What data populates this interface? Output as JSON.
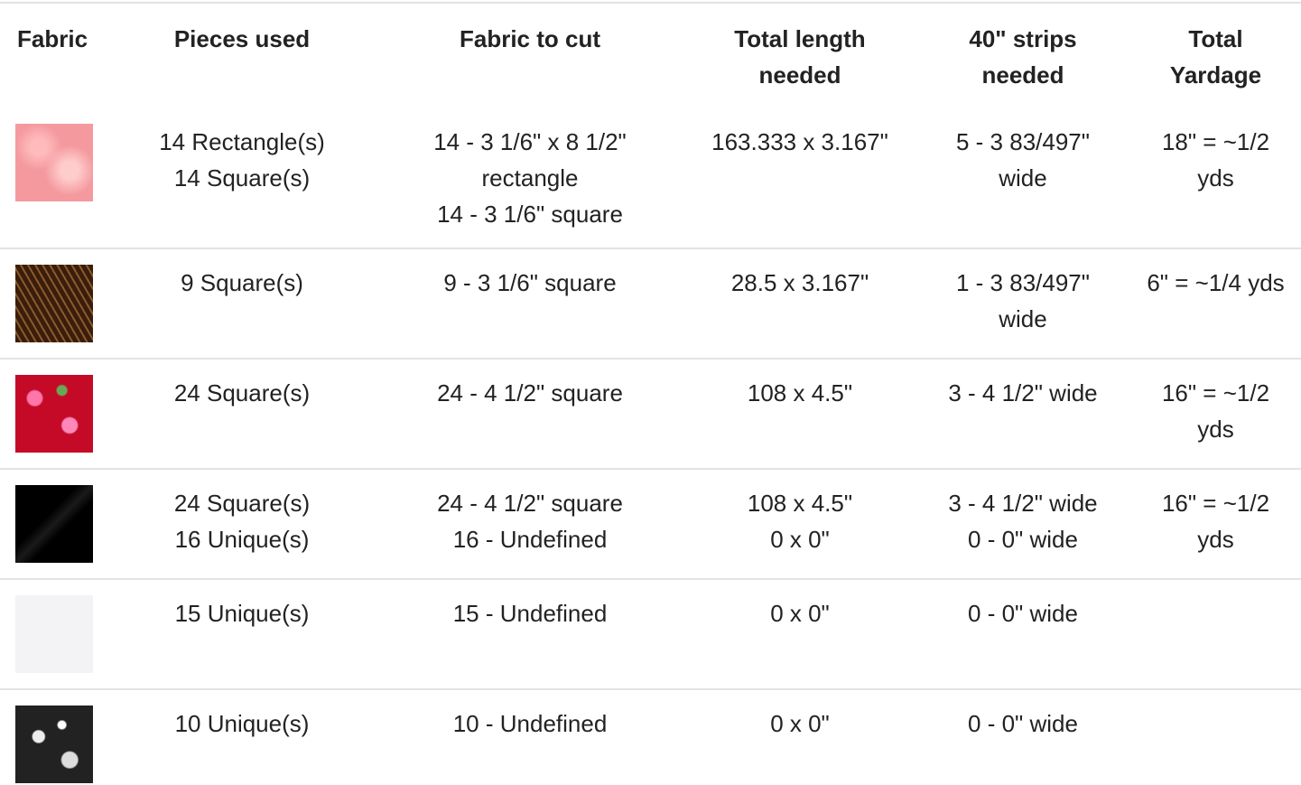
{
  "table": {
    "header": [
      "Fabric",
      "Pieces used",
      "Fabric to cut",
      "Total length needed",
      "40\" strips needed",
      "Total Yardage"
    ],
    "rows": [
      [
        [
          "14 Rectangle(s)",
          "14 Square(s)"
        ],
        [
          "14 - 3 1/6\" x 8 1/2\" rectangle",
          "14 - 3 1/6\" square"
        ],
        [
          "163.333 x 3.167\""
        ],
        [
          "5 - 3 83/497\" wide"
        ],
        [
          "18\" = ~1/2 yds"
        ]
      ],
      [
        [
          "9 Square(s)"
        ],
        [
          "9 - 3 1/6\" square"
        ],
        [
          "28.5 x 3.167\""
        ],
        [
          "1 - 3 83/497\" wide"
        ],
        [
          "6\" = ~1/4 yds"
        ]
      ],
      [
        [
          "24 Square(s)"
        ],
        [
          "24 - 4 1/2\" square"
        ],
        [
          "108 x 4.5\""
        ],
        [
          "3 - 4 1/2\" wide"
        ],
        [
          "16\" = ~1/2 yds"
        ]
      ],
      [
        [
          "24 Square(s)",
          "16 Unique(s)"
        ],
        [
          "24 - 4 1/2\" square",
          "16 - Undefined"
        ],
        [
          "108 x 4.5\"",
          "0 x 0\""
        ],
        [
          "3 - 4 1/2\" wide",
          "0 - 0\" wide"
        ],
        [
          "16\" = ~1/2 yds"
        ]
      ],
      [
        [
          "15 Unique(s)"
        ],
        [
          "15 - Undefined"
        ],
        [
          "0 x 0\""
        ],
        [
          "0 - 0\" wide"
        ],
        []
      ],
      [
        [
          "10 Unique(s)"
        ],
        [
          "10 - Undefined"
        ],
        [
          "0 x 0\""
        ],
        [
          "0 - 0\" wide"
        ],
        []
      ]
    ]
  }
}
